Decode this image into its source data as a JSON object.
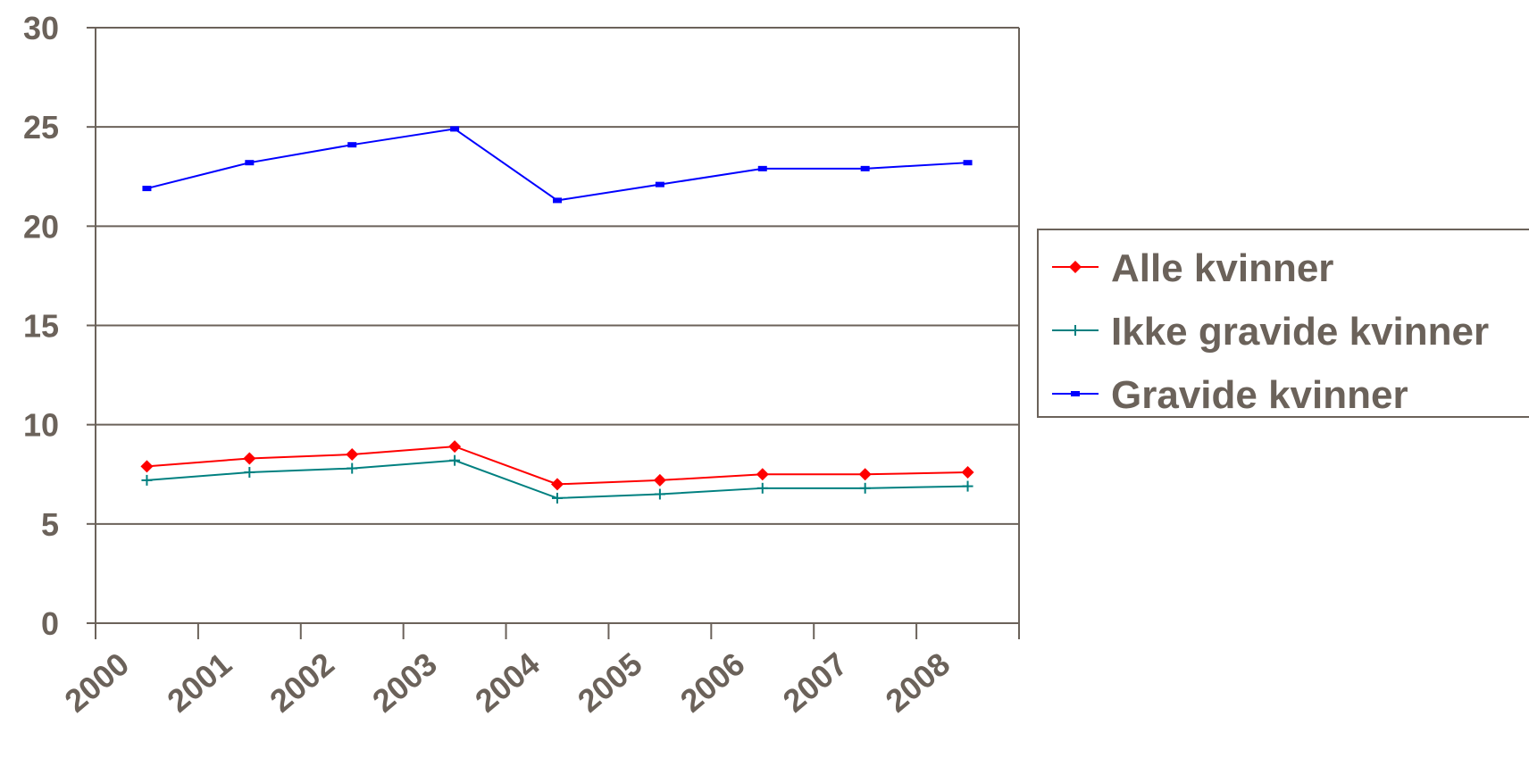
{
  "chart_data": {
    "type": "line",
    "categories": [
      "2000",
      "2001",
      "2002",
      "2003",
      "2004",
      "2005",
      "2006",
      "2007",
      "2008"
    ],
    "ylim": [
      0,
      30
    ],
    "yticks": [
      "0",
      "5",
      "10",
      "15",
      "20",
      "25",
      "30"
    ],
    "grid": true,
    "legend_position": "right",
    "series": [
      {
        "name": "Alle kvinner",
        "color": "#ff0000",
        "marker": "diamond",
        "values": [
          7.9,
          8.3,
          8.5,
          8.9,
          7.0,
          7.2,
          7.5,
          7.5,
          7.6
        ]
      },
      {
        "name": "Ikke gravide kvinner",
        "color": "#008080",
        "marker": "plus",
        "values": [
          7.2,
          7.6,
          7.8,
          8.2,
          6.3,
          6.5,
          6.8,
          6.8,
          6.9
        ]
      },
      {
        "name": "Gravide kvinner",
        "color": "#0000ff",
        "marker": "dash",
        "values": [
          21.9,
          23.2,
          24.1,
          24.9,
          21.3,
          22.1,
          22.9,
          22.9,
          23.2
        ]
      }
    ]
  },
  "colors": {
    "axis_text": "#6b625a",
    "axis_line": "#6b625a",
    "grid": "#6b625a"
  }
}
